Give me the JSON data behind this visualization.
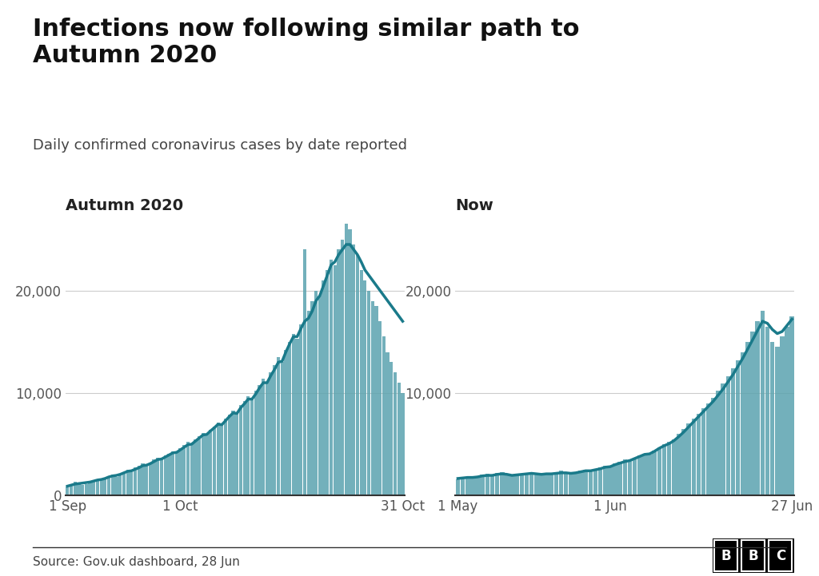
{
  "title": "Infections now following similar path to\nAutumn 2020",
  "subtitle": "Daily confirmed coronavirus cases by date reported",
  "source": "Source: Gov.uk dashboard, 28 Jun",
  "panel1_title": "Autumn 2020",
  "panel2_title": "Now",
  "bar_color": "#5ba3af",
  "line_color": "#1a7a8a",
  "background_color": "#ffffff",
  "ylim": [
    0,
    27000
  ],
  "yticks": [
    0,
    10000,
    20000
  ],
  "ytick_labels": [
    "0",
    "10,000",
    "20,000"
  ],
  "panel1_xtick_labels": [
    "1 Sep",
    "1 Oct",
    "31 Oct"
  ],
  "panel2_xtick_labels": [
    "1 May",
    "1 Jun",
    "27 Jun"
  ],
  "autumn2020_bars": [
    900,
    1100,
    1300,
    1200,
    1000,
    1100,
    1300,
    1400,
    1600,
    1500,
    1700,
    1900,
    2000,
    1800,
    2100,
    2300,
    2500,
    2400,
    2700,
    2900,
    3100,
    3000,
    3200,
    3500,
    3700,
    3600,
    3900,
    4100,
    4300,
    4200,
    4600,
    4900,
    5200,
    5000,
    5500,
    5800,
    6100,
    6000,
    6400,
    6700,
    7100,
    6900,
    7500,
    7900,
    8300,
    8000,
    8800,
    9200,
    9700,
    9400,
    10200,
    10800,
    11400,
    11000,
    12000,
    12700,
    13500,
    13000,
    14200,
    15000,
    15800,
    15300,
    16700,
    24000,
    18000,
    19000,
    20000,
    19500,
    21000,
    22000,
    23000,
    22500,
    24000,
    25000,
    26500,
    26000,
    24500,
    23500,
    22000,
    21000,
    20000,
    19000,
    18500,
    17000,
    15500,
    14000,
    13000,
    12000,
    11000,
    10000
  ],
  "autumn2020_line": [
    900,
    1000,
    1100,
    1150,
    1200,
    1250,
    1300,
    1400,
    1500,
    1550,
    1650,
    1800,
    1900,
    1950,
    2050,
    2200,
    2350,
    2400,
    2550,
    2700,
    2900,
    2950,
    3100,
    3300,
    3500,
    3550,
    3750,
    3950,
    4150,
    4200,
    4450,
    4700,
    4950,
    5000,
    5300,
    5600,
    5900,
    5950,
    6300,
    6600,
    6950,
    6900,
    7300,
    7700,
    8050,
    8000,
    8550,
    8950,
    9400,
    9400,
    9900,
    10500,
    11000,
    11000,
    11700,
    12300,
    13000,
    13100,
    14000,
    14800,
    15500,
    15500,
    16300,
    17000,
    17300,
    18000,
    19000,
    19500,
    20500,
    21500,
    22500,
    22800,
    23500,
    24000,
    24500,
    24500,
    24000,
    23500,
    22800,
    22000,
    21500,
    21000,
    20500,
    20000,
    19500,
    19000,
    18500,
    18000,
    17500,
    17000
  ],
  "now_bars": [
    1600,
    1700,
    1800,
    1700,
    1900,
    2000,
    2100,
    2000,
    2200,
    2300,
    2100,
    1900,
    2000,
    2100,
    2200,
    2300,
    2100,
    2000,
    2200,
    2100,
    2300,
    2400,
    2200,
    2100,
    2300,
    2400,
    2500,
    2400,
    2600,
    2700,
    2900,
    2800,
    3100,
    3300,
    3500,
    3400,
    3700,
    3900,
    4100,
    4000,
    4400,
    4700,
    5000,
    5200,
    5500,
    6000,
    6500,
    7000,
    7500,
    8000,
    8500,
    9000,
    9500,
    10200,
    10900,
    11600,
    12400,
    13200,
    14000,
    15000,
    16000,
    17000,
    18000,
    16500,
    15000,
    14500,
    15500,
    16500,
    17500
  ],
  "now_line": [
    1650,
    1700,
    1750,
    1750,
    1800,
    1900,
    1950,
    1950,
    2050,
    2100,
    2050,
    1950,
    2000,
    2050,
    2100,
    2150,
    2100,
    2050,
    2100,
    2100,
    2150,
    2200,
    2200,
    2150,
    2200,
    2300,
    2400,
    2400,
    2500,
    2600,
    2750,
    2800,
    3000,
    3150,
    3300,
    3400,
    3600,
    3800,
    4000,
    4050,
    4300,
    4600,
    4850,
    5050,
    5350,
    5750,
    6200,
    6700,
    7200,
    7700,
    8200,
    8700,
    9200,
    9800,
    10400,
    11100,
    11800,
    12600,
    13400,
    14300,
    15200,
    16100,
    17000,
    16800,
    16200,
    15800,
    16000,
    16600,
    17200
  ]
}
